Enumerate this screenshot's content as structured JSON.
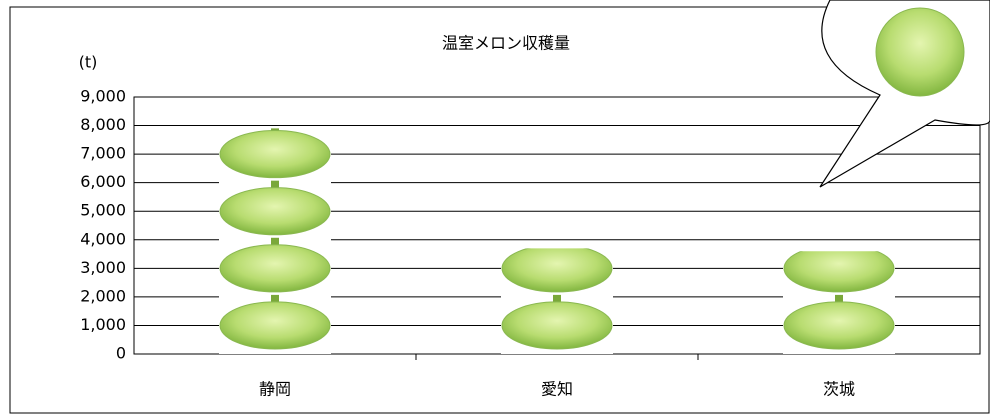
{
  "chart_data": {
    "type": "bar",
    "title": "温室メロン収穫量",
    "y_axis_label": "(t)",
    "categories": [
      "静岡",
      "愛知",
      "茨城"
    ],
    "values": [
      7900,
      3700,
      3600
    ],
    "color": "#a8d060",
    "ylim": [
      0,
      9000
    ],
    "yticks": [
      0,
      {
        "value": 1000,
        "label": "1,000"
      },
      {
        "value": 2000,
        "label": "2,000"
      },
      {
        "value": 3000,
        "label": "3,000"
      },
      {
        "value": 4000,
        "label": "4,000"
      },
      {
        "value": 5000,
        "label": "5,000"
      },
      {
        "value": 6000,
        "label": "6,000"
      },
      {
        "value": 7000,
        "label": "7,000"
      },
      {
        "value": 8000,
        "label": "8,000"
      },
      {
        "value": 9000,
        "label": "9,000"
      }
    ],
    "grid": true
  }
}
